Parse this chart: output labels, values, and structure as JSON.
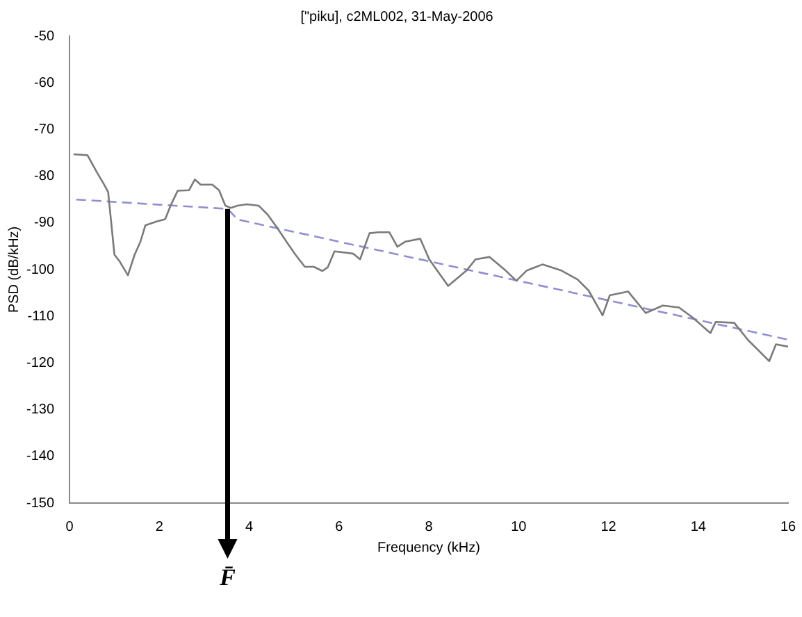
{
  "chart_data": {
    "type": "line",
    "title": "[\"piku], c2ML002, 31-May-2006",
    "xlabel": "Frequency (kHz)",
    "ylabel": "PSD (dB/kHz)",
    "xlim": [
      0,
      16
    ],
    "xticks": [
      0,
      2,
      4,
      6,
      8,
      10,
      12,
      14,
      16
    ],
    "ylim": [
      -150,
      -50
    ],
    "yticks": [
      -150,
      -140,
      -130,
      -120,
      -110,
      -100,
      -90,
      -80,
      -70,
      -60,
      -50
    ],
    "grid": false,
    "legend": false,
    "marker": "none",
    "series": [
      {
        "color": "#7a7a7a",
        "line_style": "solid",
        "x": [
          0.09,
          0.4,
          0.6,
          0.76,
          0.86,
          1.0,
          1.12,
          1.3,
          1.45,
          1.58,
          1.69,
          1.94,
          2.13,
          2.25,
          2.41,
          2.66,
          2.79,
          2.92,
          3.18,
          3.33,
          3.47,
          3.59,
          3.74,
          3.95,
          4.21,
          4.41,
          4.62,
          4.83,
          5.03,
          5.24,
          5.44,
          5.63,
          5.75,
          5.9,
          6.16,
          6.32,
          6.47,
          6.68,
          6.88,
          7.12,
          7.3,
          7.48,
          7.81,
          8.01,
          8.43,
          8.84,
          9.04,
          9.35,
          9.71,
          9.95,
          10.18,
          10.53,
          10.95,
          11.31,
          11.56,
          11.87,
          12.03,
          12.44,
          12.83,
          13.21,
          13.57,
          13.88,
          14.27,
          14.39,
          14.8,
          15.11,
          15.58,
          15.73,
          16.0
        ],
        "values": [
          -75.3,
          -75.5,
          -79,
          -81.6,
          -83.4,
          -96.8,
          -98.3,
          -101.2,
          -96.8,
          -94,
          -90.5,
          -89.7,
          -89.2,
          -86.3,
          -83.1,
          -83,
          -80.7,
          -81.8,
          -81.8,
          -83,
          -86.3,
          -86.8,
          -86.3,
          -86,
          -86.3,
          -88.2,
          -91,
          -94,
          -96.8,
          -99.4,
          -99.4,
          -100.3,
          -99.5,
          -96.1,
          -96.4,
          -96.6,
          -97.8,
          -92.2,
          -92,
          -92,
          -95.1,
          -94,
          -93.4,
          -97.8,
          -103.5,
          -100.2,
          -97.8,
          -97.3,
          -100.2,
          -102.4,
          -100.2,
          -98.9,
          -100.2,
          -102.1,
          -104.5,
          -109.8,
          -105.5,
          -104.7,
          -109.3,
          -107.7,
          -108.1,
          -110.3,
          -113.6,
          -111.2,
          -111.4,
          -115.1,
          -119.6,
          -116,
          -116.5
        ]
      },
      {
        "color": "#8f8fd0",
        "line_style": "dashed",
        "x": [
          0.15,
          3.52,
          3.75,
          16
        ],
        "values": [
          -85,
          -87,
          -89.3,
          -115
        ]
      }
    ],
    "annotations": [
      {
        "text": "F̄",
        "x": 3.52,
        "y": -87
      }
    ]
  }
}
